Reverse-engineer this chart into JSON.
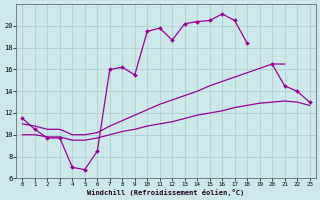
{
  "xlabel": "Windchill (Refroidissement éolien,°C)",
  "bg_color": "#cce8e8",
  "line_color": "#990099",
  "grid_color": "#aacccc",
  "xlim": [
    0,
    23
  ],
  "ylim": [
    6,
    22
  ],
  "yticks": [
    6,
    8,
    10,
    12,
    14,
    16,
    18,
    20
  ],
  "xticks": [
    0,
    1,
    2,
    3,
    4,
    5,
    6,
    7,
    8,
    9,
    10,
    11,
    12,
    13,
    14,
    15,
    16,
    17,
    18,
    19,
    20,
    21,
    22,
    23
  ],
  "curve1_x": [
    0,
    1,
    2,
    3,
    4,
    5,
    6,
    7,
    8,
    9,
    10,
    11,
    12,
    13,
    14,
    15,
    16,
    17,
    18
  ],
  "curve1_y": [
    11.5,
    10.5,
    9.7,
    9.7,
    7.0,
    6.8,
    8.5,
    16.0,
    16.2,
    15.5,
    19.5,
    19.8,
    18.7,
    20.2,
    20.4,
    20.5,
    21.1,
    20.5,
    18.4
  ],
  "curve2_x": [
    20,
    21,
    22,
    23
  ],
  "curve2_y": [
    16.5,
    14.5,
    14.0,
    13.0
  ],
  "curve3_x": [
    0,
    1,
    2,
    3,
    4,
    5,
    6,
    7,
    8,
    9,
    10,
    11,
    12,
    13,
    14,
    15,
    16,
    17,
    18,
    19,
    20,
    21
  ],
  "curve3_y": [
    11.0,
    10.8,
    10.5,
    10.5,
    10.0,
    10.0,
    10.2,
    10.8,
    11.3,
    11.8,
    12.3,
    12.8,
    13.2,
    13.6,
    14.0,
    14.5,
    14.9,
    15.3,
    15.7,
    16.1,
    16.5,
    16.5
  ],
  "curve4_x": [
    0,
    1,
    2,
    3,
    4,
    5,
    6,
    7,
    8,
    9,
    10,
    11,
    12,
    13,
    14,
    15,
    16,
    17,
    18,
    19,
    20,
    21,
    22,
    23
  ],
  "curve4_y": [
    10.0,
    10.0,
    9.8,
    9.8,
    9.5,
    9.5,
    9.7,
    10.0,
    10.3,
    10.5,
    10.8,
    11.0,
    11.2,
    11.5,
    11.8,
    12.0,
    12.2,
    12.5,
    12.7,
    12.9,
    13.0,
    13.1,
    13.0,
    12.7
  ]
}
